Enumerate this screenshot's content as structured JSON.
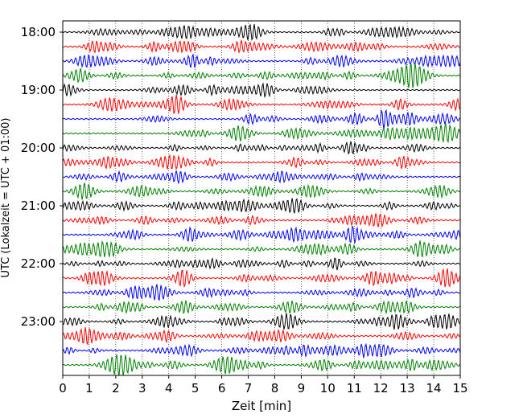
{
  "chart_data": {
    "type": "line",
    "title": "",
    "xlabel": "Zeit  [min]",
    "ylabel": "UTC (Lokalzeit = UTC + 01:00)",
    "xlim": [
      0,
      15
    ],
    "x_ticks": [
      "0",
      "1",
      "2",
      "3",
      "4",
      "5",
      "6",
      "7",
      "8",
      "9",
      "10",
      "11",
      "12",
      "13",
      "14",
      "15"
    ],
    "y_ticks": [
      "18:00",
      "19:00",
      "20:00",
      "21:00",
      "22:00",
      "23:00"
    ],
    "grid": "vertical dotted lines at each minute",
    "trace_colors": [
      "#000000",
      "#ff0000",
      "#0000ff",
      "#008000"
    ],
    "trace_count": 24,
    "trace_interval_minutes": 15,
    "first_trace_start": "18:00",
    "last_trace_start": "23:45"
  }
}
